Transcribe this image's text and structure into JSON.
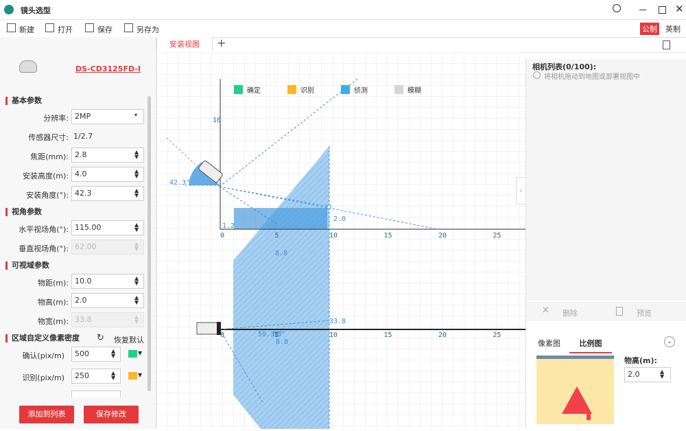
{
  "titlebar": {
    "title": "镜头选型"
  },
  "toolbar": {
    "items": [
      "新建",
      "打开",
      "保存",
      "另存为"
    ],
    "units": [
      "公制",
      "英制"
    ]
  },
  "tabs": {
    "items": [
      "安装视图"
    ]
  },
  "left_panel": {
    "model": "DS-CD3125FD-I",
    "sections": [
      {
        "title": "基本参数",
        "fields": [
          {
            "label": "分辨率:",
            "value": "2MP"
          },
          {
            "label": "传感器尺寸:",
            "value": "1/2.7"
          },
          {
            "label": "焦距(mm):",
            "value": "2.8"
          },
          {
            "label": "安装高度(m):",
            "value": "4.0"
          },
          {
            "label": "安装角度(°):",
            "value": "42.3"
          }
        ]
      },
      {
        "title": "视角参数",
        "fields": [
          {
            "label": "水平视场角(°):",
            "value": "115.00"
          },
          {
            "label": "垂直视场角(°):",
            "value": "62.00"
          }
        ]
      },
      {
        "title": "可视域参数",
        "fields": [
          {
            "label": "物距(m):",
            "value": "10.0"
          },
          {
            "label": "物高(m):",
            "value": "2.0"
          },
          {
            "label": "物宽(m):",
            "value": "33.8"
          }
        ]
      },
      {
        "title": "区域自定义像素密度",
        "reset": "恢复默认",
        "fields": [
          {
            "label": "确认(pix/m)",
            "value": "500",
            "color": "#1fd18b"
          },
          {
            "label": "识别(pix/m)",
            "value": "250",
            "color": "#fbb726"
          }
        ]
      }
    ],
    "buttons": [
      "添加到列表",
      "保存修改"
    ]
  },
  "canvas": {
    "legend": [
      {
        "name": "确定",
        "color": "#1fd18b"
      },
      {
        "name": "识别",
        "color": "#fbb726"
      },
      {
        "name": "侦测",
        "color": "#3aaee9"
      },
      {
        "name": "模糊",
        "color": "#d6d6d6"
      }
    ],
    "xticks": [
      0,
      5,
      10,
      15,
      20,
      25
    ],
    "yticks": [
      10
    ],
    "annotations": {
      "tilt": "42.3°",
      "floor_height": "1.2",
      "object_height": "2.0",
      "distance_side": "8.8",
      "width": "33.8",
      "angle_a": "59.35°",
      "angle_b": "55°",
      "distance_top": "8.8"
    }
  },
  "right_panel": {
    "list_title": "相机列表(0/100):",
    "hint": "将相机拖动到地图或部署视图中",
    "actions": [
      "删除",
      "预览"
    ],
    "view_tabs": [
      "像素图",
      "比例图"
    ],
    "object_height_label": "物高(m):",
    "object_height_value": "2.0"
  }
}
